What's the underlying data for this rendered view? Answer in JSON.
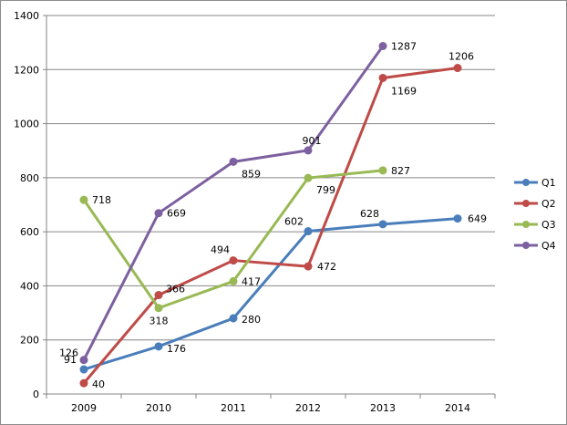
{
  "chart_data": {
    "type": "line",
    "title": "",
    "xlabel": "",
    "ylabel": "",
    "categories": [
      "2009",
      "2010",
      "2011",
      "2012",
      "2013",
      "2014"
    ],
    "ylim": [
      0,
      1400
    ],
    "yticks": [
      0,
      200,
      400,
      600,
      800,
      1000,
      1200,
      1400
    ],
    "grid": "horizontal",
    "legend_position": "right",
    "series": [
      {
        "name": "Q1",
        "color": "#4a7ebb",
        "values": [
          91,
          176,
          280,
          602,
          628,
          649
        ]
      },
      {
        "name": "Q2",
        "color": "#be4b48",
        "values": [
          40,
          366,
          494,
          472,
          1169,
          1206
        ]
      },
      {
        "name": "Q3",
        "color": "#98b954",
        "values": [
          718,
          318,
          417,
          799,
          827,
          null
        ]
      },
      {
        "name": "Q4",
        "color": "#7d60a0",
        "values": [
          126,
          669,
          859,
          901,
          1287,
          null
        ]
      }
    ]
  }
}
